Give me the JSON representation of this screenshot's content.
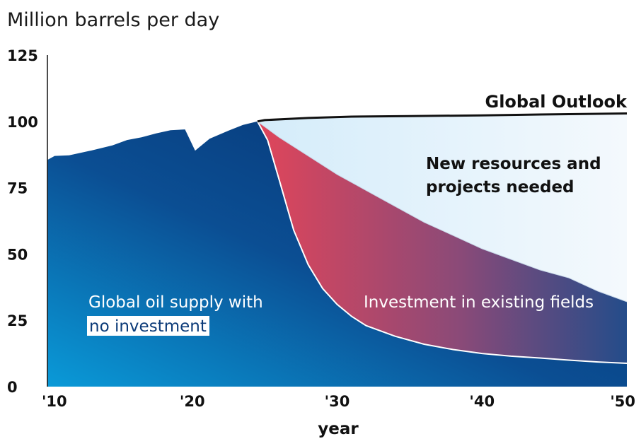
{
  "chart_data": {
    "type": "area",
    "ylabel": "Million barrels per day",
    "xlabel": "year",
    "xlim": [
      2010,
      2050
    ],
    "ylim": [
      0,
      125
    ],
    "x_ticks": [
      {
        "value": 2010,
        "label": "'10"
      },
      {
        "value": 2020,
        "label": "'20"
      },
      {
        "value": 2030,
        "label": "'30"
      },
      {
        "value": 2040,
        "label": "'40"
      },
      {
        "value": 2050,
        "label": "'50"
      }
    ],
    "y_ticks": [
      {
        "value": 0,
        "label": "0"
      },
      {
        "value": 25,
        "label": "25"
      },
      {
        "value": 50,
        "label": "50"
      },
      {
        "value": 75,
        "label": "75"
      },
      {
        "value": 100,
        "label": "100"
      },
      {
        "value": 125,
        "label": "125"
      }
    ],
    "series": [
      {
        "name": "Global Outlook",
        "points": [
          [
            2024.5,
            100
          ],
          [
            2025,
            100.5
          ],
          [
            2028,
            101.3
          ],
          [
            2031,
            101.8
          ],
          [
            2035,
            102
          ],
          [
            2040,
            102.3
          ],
          [
            2045,
            102.7
          ],
          [
            2050,
            103
          ]
        ]
      },
      {
        "name": "Investment in existing fields",
        "points": [
          [
            2024.5,
            100
          ],
          [
            2026,
            94
          ],
          [
            2028,
            87
          ],
          [
            2030,
            80
          ],
          [
            2032,
            74
          ],
          [
            2034,
            68
          ],
          [
            2036,
            62
          ],
          [
            2038,
            57
          ],
          [
            2040,
            52
          ],
          [
            2042,
            48
          ],
          [
            2044,
            44
          ],
          [
            2046,
            41
          ],
          [
            2048,
            36
          ],
          [
            2050,
            32
          ]
        ]
      },
      {
        "name": "Global oil supply with no investment",
        "points": [
          [
            2010,
            85.5
          ],
          [
            2010.5,
            87
          ],
          [
            2011.5,
            87.2
          ],
          [
            2013,
            89
          ],
          [
            2014.5,
            91
          ],
          [
            2015.5,
            93
          ],
          [
            2016.5,
            94
          ],
          [
            2017.5,
            95.5
          ],
          [
            2018.5,
            96.7
          ],
          [
            2019.5,
            97
          ],
          [
            2020.2,
            89
          ],
          [
            2021.2,
            93.5
          ],
          [
            2022.5,
            96.5
          ],
          [
            2023.5,
            98.7
          ],
          [
            2024.5,
            100
          ],
          [
            2025.2,
            93
          ],
          [
            2026,
            78
          ],
          [
            2027,
            59
          ],
          [
            2028,
            46
          ],
          [
            2029,
            37
          ],
          [
            2030,
            31
          ],
          [
            2031,
            26.5
          ],
          [
            2032,
            23
          ],
          [
            2034,
            19
          ],
          [
            2036,
            16
          ],
          [
            2038,
            14
          ],
          [
            2040,
            12.5
          ],
          [
            2042,
            11.5
          ],
          [
            2044,
            10.8
          ],
          [
            2046,
            10
          ],
          [
            2048,
            9.3
          ],
          [
            2050,
            8.8
          ]
        ]
      }
    ],
    "annotations": {
      "global_outlook": "Global Outlook",
      "new_resources_line1": "New resources and",
      "new_resources_line2": "projects needed",
      "investment": "Investment in existing fields",
      "no_invest_line1": "Global oil supply with",
      "no_invest_line2": "no investment"
    }
  }
}
